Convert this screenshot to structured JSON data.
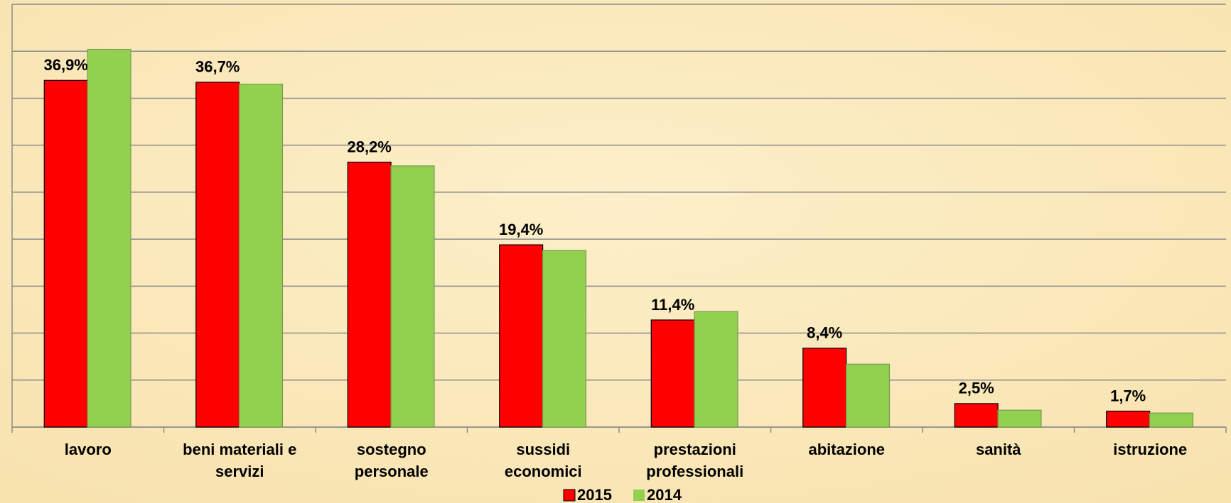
{
  "chart_data": {
    "type": "bar",
    "categories": [
      "lavoro",
      "beni materiali e servizi",
      "sostegno personale",
      "sussidi economici",
      "prestazioni professionali",
      "abitazione",
      "sanità",
      "istruzione"
    ],
    "series": [
      {
        "name": "2015",
        "color": "#ff0000",
        "values": [
          36.9,
          36.7,
          28.2,
          19.4,
          11.4,
          8.4,
          2.5,
          1.7
        ],
        "value_labels": [
          "36,9%",
          "36,7%",
          "28,2%",
          "19,4%",
          "11,4%",
          "8,4%",
          "2,5%",
          "1,7%"
        ]
      },
      {
        "name": "2014",
        "color": "#92d050",
        "values": [
          40.2,
          36.5,
          27.8,
          18.8,
          12.3,
          6.7,
          1.8,
          1.5
        ]
      }
    ],
    "ylim": [
      0,
      45
    ],
    "yticks": [
      0,
      5,
      10,
      15,
      20,
      25,
      30,
      35,
      40,
      45
    ],
    "grid": true,
    "legend": "bottom"
  }
}
